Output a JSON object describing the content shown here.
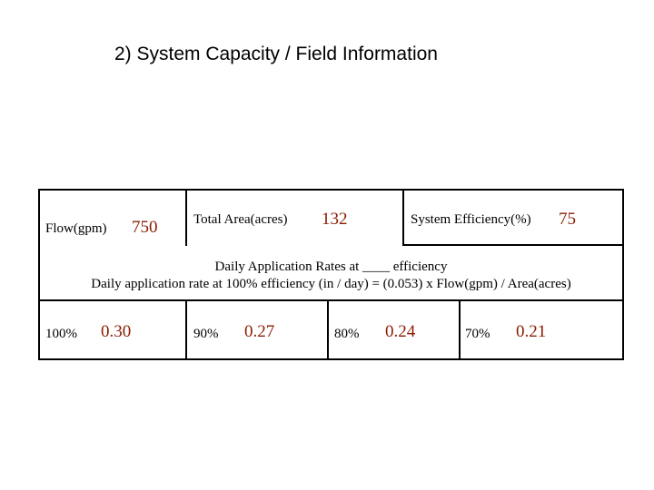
{
  "title": "2)  System Capacity / Field Information",
  "top_row": {
    "flow_label": "Flow(gpm)",
    "flow_value": "750",
    "area_label": "Total Area(acres)",
    "area_value": "132",
    "eff_label": "System Efficiency(%)",
    "eff_value": "75"
  },
  "middle": {
    "line1": "Daily Application Rates at ____ efficiency",
    "line2": "Daily application rate at 100% efficiency (in / day) = (0.053) x Flow(gpm) / Area(acres)"
  },
  "rates": [
    {
      "pct": "100%",
      "value": "0.30"
    },
    {
      "pct": "90%",
      "value": "0.27"
    },
    {
      "pct": "80%",
      "value": "0.24"
    },
    {
      "pct": "70%",
      "value": "0.21"
    }
  ],
  "colors": {
    "value": "#8b1a00",
    "border": "#000000"
  }
}
